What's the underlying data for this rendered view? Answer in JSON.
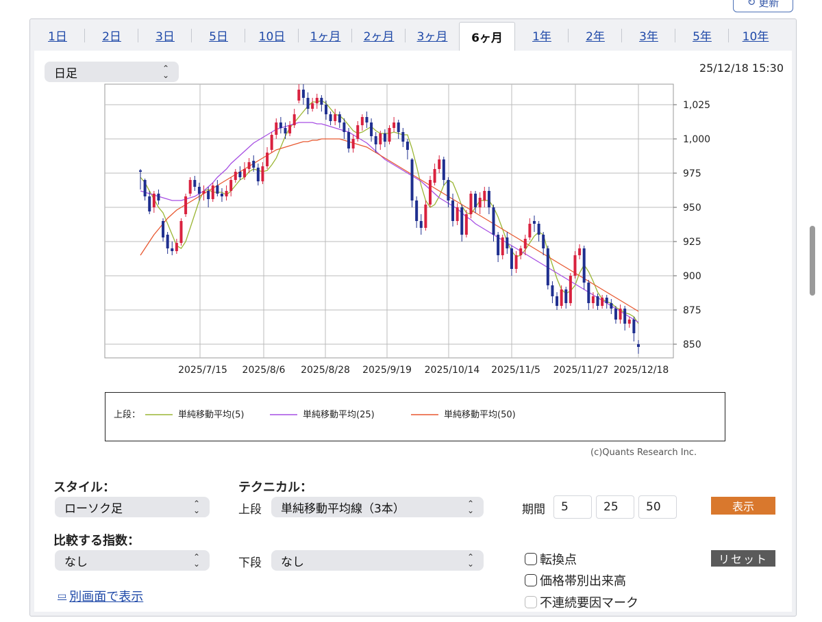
{
  "header": {
    "refresh_label": "更新"
  },
  "tabs": [
    "1日",
    "2日",
    "3日",
    "5日",
    "10日",
    "1ヶ月",
    "2ヶ月",
    "3ヶ月",
    "6ヶ月",
    "1年",
    "2年",
    "3年",
    "5年",
    "10年"
  ],
  "active_tab": "6ヶ月",
  "period_select": {
    "value": "日足"
  },
  "timestamp": "25/12/18 15:30",
  "chart_data": {
    "type": "candlestick",
    "ylim": [
      840,
      1040
    ],
    "yticks": [
      850,
      875,
      900,
      925,
      950,
      975,
      1000,
      1025
    ],
    "yticklabels": [
      "850",
      "875",
      "900",
      "925",
      "950",
      "975",
      "1,000",
      "1,025"
    ],
    "xticklabels": [
      "2025/7/15",
      "2025/8/6",
      "2025/8/28",
      "2025/9/19",
      "2025/10/14",
      "2025/11/5",
      "2025/11/27",
      "2025/12/18"
    ],
    "grid": true,
    "candles": [
      [
        977,
        976,
        978,
        963
      ],
      [
        970,
        958,
        971,
        955
      ],
      [
        958,
        947,
        962,
        945
      ],
      [
        950,
        960,
        962,
        946
      ],
      [
        960,
        955,
        963,
        952
      ],
      [
        940,
        928,
        942,
        925
      ],
      [
        930,
        920,
        932,
        916
      ],
      [
        920,
        918,
        925,
        915
      ],
      [
        918,
        924,
        927,
        916
      ],
      [
        924,
        940,
        942,
        922
      ],
      [
        945,
        958,
        960,
        943
      ],
      [
        960,
        970,
        972,
        958
      ],
      [
        970,
        965,
        973,
        962
      ],
      [
        965,
        960,
        968,
        955
      ],
      [
        960,
        962,
        966,
        955
      ],
      [
        962,
        956,
        965,
        950
      ],
      [
        956,
        966,
        968,
        954
      ],
      [
        966,
        960,
        970,
        958
      ],
      [
        960,
        958,
        964,
        954
      ],
      [
        958,
        962,
        966,
        955
      ],
      [
        962,
        970,
        972,
        958
      ],
      [
        970,
        976,
        978,
        968
      ],
      [
        976,
        972,
        980,
        970
      ],
      [
        972,
        978,
        983,
        970
      ],
      [
        978,
        983,
        986,
        975
      ],
      [
        984,
        979,
        988,
        976
      ],
      [
        979,
        969,
        982,
        966
      ],
      [
        969,
        980,
        983,
        967
      ],
      [
        980,
        990,
        994,
        978
      ],
      [
        992,
        1003,
        1005,
        990
      ],
      [
        1003,
        1012,
        1015,
        1000
      ],
      [
        1012,
        1008,
        1016,
        1004
      ],
      [
        1008,
        1004,
        1012,
        1000
      ],
      [
        1004,
        1010,
        1013,
        1002
      ],
      [
        1010,
        1018,
        1022,
        1008
      ],
      [
        1028,
        1036,
        1040,
        1026
      ],
      [
        1036,
        1030,
        1040,
        1025
      ],
      [
        1030,
        1022,
        1034,
        1018
      ],
      [
        1022,
        1026,
        1030,
        1020
      ],
      [
        1026,
        1030,
        1033,
        1022
      ],
      [
        1030,
        1025,
        1032,
        1020
      ],
      [
        1025,
        1018,
        1028,
        1014
      ],
      [
        1018,
        1013,
        1020,
        1010
      ],
      [
        1013,
        1018,
        1022,
        1010
      ],
      [
        1018,
        1012,
        1020,
        1008
      ],
      [
        1012,
        1005,
        1015,
        1000
      ],
      [
        1005,
        993,
        1008,
        990
      ],
      [
        993,
        1000,
        1003,
        990
      ],
      [
        1000,
        1010,
        1013,
        998
      ],
      [
        1010,
        1016,
        1018,
        1006
      ],
      [
        1016,
        1012,
        1020,
        1008
      ],
      [
        1012,
        1002,
        1015,
        998
      ],
      [
        1002,
        996,
        1005,
        990
      ],
      [
        996,
        1004,
        1006,
        992
      ],
      [
        1004,
        998,
        1007,
        994
      ],
      [
        998,
        1008,
        1010,
        996
      ],
      [
        1008,
        1012,
        1016,
        1005
      ],
      [
        1012,
        1005,
        1014,
        1000
      ],
      [
        1005,
        998,
        1008,
        994
      ],
      [
        998,
        992,
        1000,
        985
      ],
      [
        985,
        955,
        986,
        950
      ],
      [
        955,
        940,
        958,
        935
      ],
      [
        940,
        935,
        945,
        930
      ],
      [
        935,
        952,
        955,
        933
      ],
      [
        952,
        970,
        973,
        950
      ],
      [
        968,
        978,
        982,
        966
      ],
      [
        978,
        985,
        988,
        975
      ],
      [
        985,
        970,
        987,
        966
      ],
      [
        970,
        955,
        972,
        950
      ],
      [
        955,
        940,
        960,
        936
      ],
      [
        940,
        950,
        953,
        937
      ],
      [
        950,
        930,
        952,
        925
      ],
      [
        930,
        945,
        948,
        928
      ],
      [
        945,
        960,
        962,
        942
      ],
      [
        960,
        950,
        962,
        946
      ],
      [
        950,
        957,
        961,
        945
      ],
      [
        955,
        962,
        965,
        950
      ],
      [
        962,
        950,
        965,
        945
      ],
      [
        950,
        930,
        952,
        925
      ],
      [
        930,
        915,
        932,
        910
      ],
      [
        915,
        928,
        930,
        912
      ],
      [
        928,
        920,
        932,
        916
      ],
      [
        920,
        905,
        922,
        900
      ],
      [
        905,
        915,
        918,
        902
      ],
      [
        915,
        920,
        922,
        912
      ],
      [
        920,
        927,
        930,
        915
      ],
      [
        928,
        938,
        942,
        926
      ],
      [
        940,
        938,
        944,
        932
      ],
      [
        938,
        930,
        940,
        925
      ],
      [
        930,
        920,
        932,
        915
      ],
      [
        920,
        893,
        922,
        890
      ],
      [
        893,
        885,
        896,
        880
      ],
      [
        885,
        878,
        888,
        875
      ],
      [
        878,
        890,
        893,
        876
      ],
      [
        890,
        880,
        892,
        876
      ],
      [
        880,
        900,
        902,
        878
      ],
      [
        900,
        915,
        918,
        898
      ],
      [
        915,
        920,
        923,
        912
      ],
      [
        920,
        895,
        922,
        890
      ],
      [
        895,
        880,
        897,
        875
      ],
      [
        880,
        885,
        888,
        876
      ],
      [
        885,
        878,
        887,
        875
      ],
      [
        878,
        884,
        886,
        876
      ],
      [
        884,
        880,
        886,
        876
      ],
      [
        880,
        876,
        883,
        872
      ],
      [
        876,
        868,
        878,
        865
      ],
      [
        868,
        876,
        879,
        865
      ],
      [
        876,
        865,
        878,
        860
      ],
      [
        865,
        868,
        870,
        862
      ],
      [
        868,
        858,
        870,
        852
      ],
      [
        850,
        848,
        853,
        843
      ]
    ],
    "series": [
      {
        "name": "単純移動平均(5)",
        "color": "#9ab533",
        "values": [
          972,
          968,
          962,
          956,
          950,
          946,
          938,
          930,
          922,
          920,
          925,
          935,
          945,
          955,
          962,
          963,
          961,
          961,
          961,
          959,
          962,
          966,
          970,
          972,
          976,
          978,
          977,
          976,
          977,
          981,
          986,
          994,
          1002,
          1008,
          1012,
          1016,
          1020,
          1024,
          1027,
          1027,
          1028,
          1026,
          1022,
          1018,
          1017,
          1014,
          1010,
          1006,
          1004,
          1005,
          1007,
          1009,
          1006,
          1004,
          1004,
          1004,
          1005,
          1004,
          1003,
          1003,
          993,
          980,
          966,
          955,
          950,
          952,
          958,
          966,
          970,
          968,
          960,
          951,
          946,
          945,
          950,
          955,
          955,
          955,
          950,
          943,
          934,
          925,
          918,
          914,
          915,
          919,
          924,
          929,
          932,
          930,
          918,
          908,
          898,
          890,
          887,
          889,
          893,
          902,
          908,
          903,
          896,
          888,
          883,
          881,
          880,
          877,
          875,
          873,
          872,
          870,
          865
        ]
      },
      {
        "name": "単純移動平均(25)",
        "color": "#a64ee3",
        "values": [
          962,
          961,
          960,
          959,
          958,
          957,
          956,
          955,
          955,
          955,
          956,
          957,
          958,
          960,
          962,
          965,
          968,
          972,
          975,
          978,
          982,
          985,
          988,
          991,
          994,
          997,
          999,
          1001,
          1003,
          1005,
          1007,
          1008,
          1009,
          1010,
          1011,
          1012,
          1012,
          1012,
          1012,
          1011,
          1011,
          1010,
          1009,
          1008,
          1007,
          1006,
          1005,
          1003,
          1001,
          999,
          997,
          994,
          991,
          988,
          985,
          983,
          981,
          979,
          977,
          975,
          973,
          971,
          969,
          966,
          963,
          960,
          957,
          955,
          953,
          951,
          949,
          946,
          943,
          941,
          938,
          936,
          934,
          932,
          930,
          928,
          926,
          924,
          922,
          920,
          918,
          916,
          914,
          912,
          910,
          908,
          906,
          904,
          902,
          900,
          898,
          896,
          894,
          892,
          890,
          888,
          886,
          884,
          882,
          880,
          878,
          876,
          874,
          872,
          870,
          868,
          866
        ]
      },
      {
        "name": "単純移動平均(50)",
        "color": "#e8572f",
        "values": [
          915,
          920,
          925,
          930,
          934,
          938,
          942,
          945,
          948,
          950,
          952,
          954,
          956,
          958,
          960,
          962,
          964,
          966,
          968,
          970,
          972,
          974,
          976,
          978,
          980,
          982,
          984,
          986,
          988,
          990,
          992,
          993,
          994,
          995,
          996,
          997,
          998,
          998,
          999,
          999,
          1000,
          1000,
          1000,
          1000,
          1000,
          999,
          998,
          997,
          996,
          995,
          994,
          992,
          990,
          988,
          986,
          984,
          982,
          980,
          978,
          976,
          974,
          972,
          970,
          968,
          966,
          964,
          962,
          960,
          958,
          956,
          954,
          952,
          950,
          948,
          946,
          944,
          942,
          940,
          938,
          936,
          934,
          932,
          930,
          928,
          926,
          924,
          922,
          920,
          918,
          916,
          914,
          912,
          910,
          908,
          906,
          904,
          902,
          900,
          898,
          896,
          894,
          892,
          890,
          888,
          886,
          884,
          882,
          880,
          878,
          876,
          874
        ]
      }
    ],
    "legend_title": "上段："
  },
  "credit": "(c)Quants Research Inc.",
  "controls": {
    "style_label": "スタイル：",
    "style_value": "ローソク足",
    "technical_label": "テクニカル：",
    "upper_label": "上段",
    "upper_value": "単純移動平均線（3本）",
    "period_label": "期間",
    "periods": [
      "5",
      "25",
      "50"
    ],
    "show_button": "表示",
    "compare_label": "比較する指数：",
    "compare_value": "なし",
    "lower_label": "下段",
    "lower_value": "なし",
    "checks": [
      "転換点",
      "価格帯別出来高",
      "不連続要因マーク"
    ],
    "reset_button": "リセット",
    "new_window_link": "別画面で表示"
  },
  "colors": {
    "up": "#d9223f",
    "down": "#1f2f8f",
    "accent": "#d9782d",
    "link": "#1f49a8"
  }
}
